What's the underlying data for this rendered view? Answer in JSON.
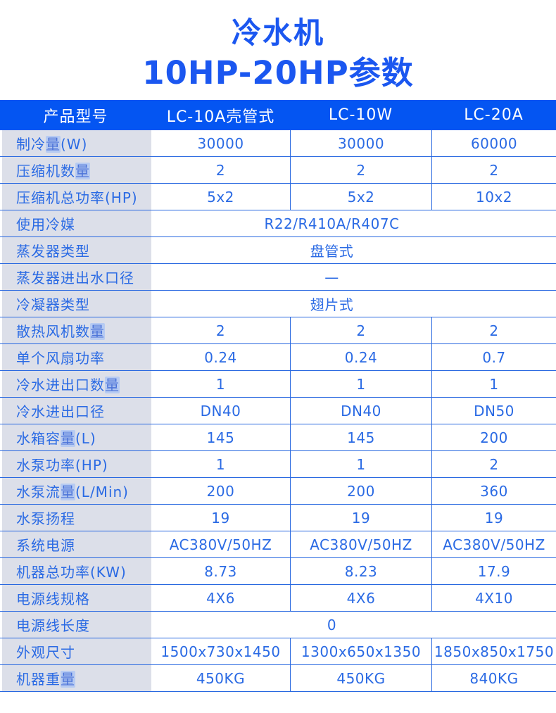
{
  "title": {
    "line1": "冷水机",
    "line2": "10HP-20HP参数"
  },
  "colors": {
    "accent_blue": "#0455f2",
    "grid_line": "#2767e0",
    "text_blue": "#2a6ae4",
    "label_bg": "#dcdfe9",
    "title_blue": "#1b57f0",
    "highlight_bg": "#b7cbf2"
  },
  "highlight_char": "量",
  "table": {
    "columns": [
      "产品型号",
      "LC-10A壳管式",
      "LC-10W",
      "LC-20A"
    ],
    "rows": [
      {
        "label": "制冷量(W)",
        "values": [
          "30000",
          "30000",
          "60000"
        ]
      },
      {
        "label": "压缩机数量",
        "values": [
          "2",
          "2",
          "2"
        ]
      },
      {
        "label": "压缩机总功率(HP)",
        "values": [
          "5x2",
          "5x2",
          "10x2"
        ]
      },
      {
        "label": "使用冷媒",
        "span": "R22/R410A/R407C"
      },
      {
        "label": "蒸发器类型",
        "span": "盘管式"
      },
      {
        "label": "蒸发器进出水口径",
        "span": "—"
      },
      {
        "label": "冷凝器类型",
        "span": "翅片式"
      },
      {
        "label": "散热风机数量",
        "values": [
          "2",
          "2",
          "2"
        ]
      },
      {
        "label": "单个风扇功率",
        "values": [
          "0.24",
          "0.24",
          "0.7"
        ]
      },
      {
        "label": "冷水进出口数量",
        "values": [
          "1",
          "1",
          "1"
        ]
      },
      {
        "label": "冷水进出口径",
        "values": [
          "DN40",
          "DN40",
          "DN50"
        ]
      },
      {
        "label": "水箱容量(L)",
        "values": [
          "145",
          "145",
          "200"
        ]
      },
      {
        "label": "水泵功率(HP)",
        "values": [
          "1",
          "1",
          "2"
        ]
      },
      {
        "label": "水泵流量(L/Min)",
        "values": [
          "200",
          "200",
          "360"
        ]
      },
      {
        "label": "水泵扬程",
        "values": [
          "19",
          "19",
          "19"
        ]
      },
      {
        "label": "系统电源",
        "values": [
          "AC380V/50HZ",
          "AC380V/50HZ",
          "AC380V/50HZ"
        ]
      },
      {
        "label": "机器总功率(KW)",
        "values": [
          "8.73",
          "8.23",
          "17.9"
        ]
      },
      {
        "label": "电源线规格",
        "values": [
          "4X6",
          "4X6",
          "4X10"
        ]
      },
      {
        "label": "电源线长度",
        "span": "0"
      },
      {
        "label": "外观尺寸",
        "values": [
          "1500x730x1450",
          "1300x650x1350",
          "1850x850x1750"
        ]
      },
      {
        "label": "机器重量",
        "values": [
          "450KG",
          "450KG",
          "840KG"
        ]
      }
    ]
  }
}
